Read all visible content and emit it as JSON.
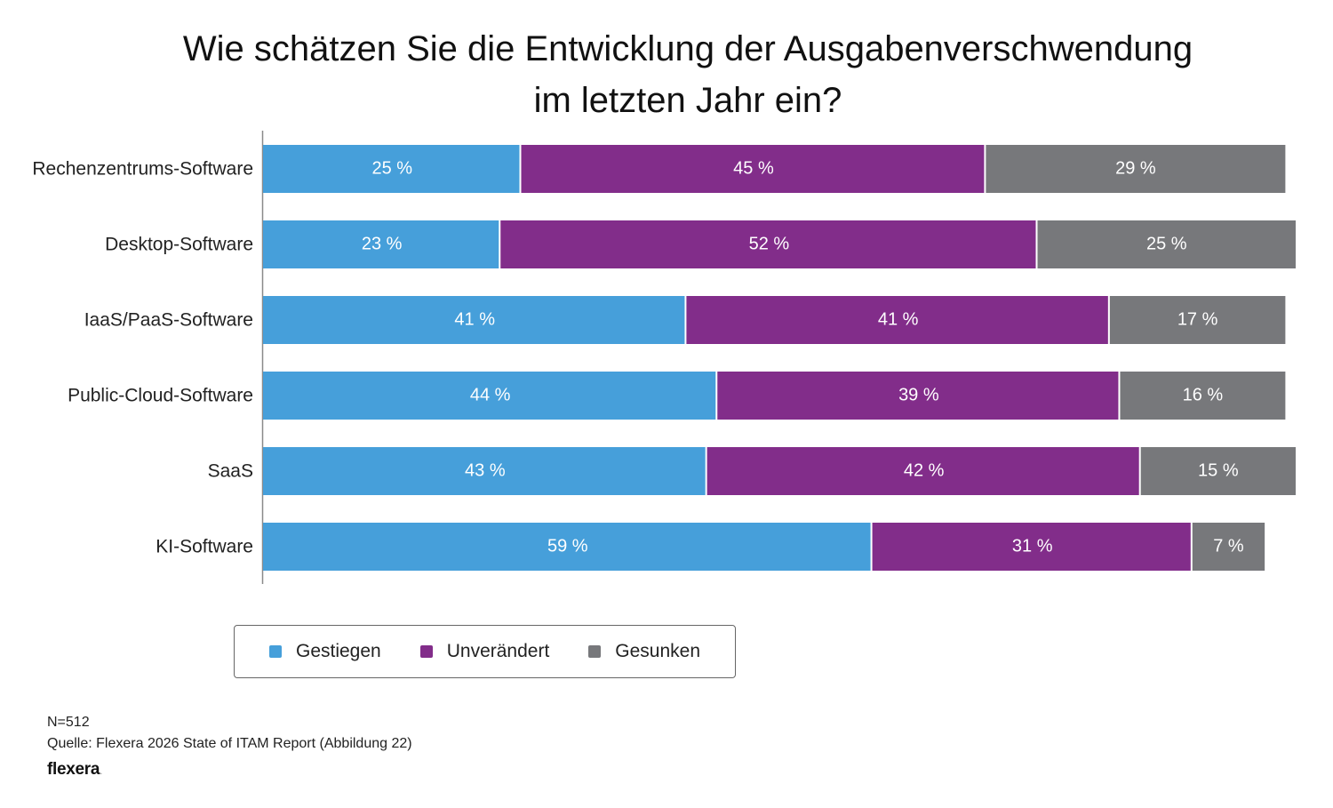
{
  "title_line1": "Wie schätzen Sie die Entwicklung der Ausgabenverschwendung",
  "title_line2": "im letzten Jahr ein?",
  "chart_data": {
    "type": "bar",
    "orientation": "horizontal",
    "stacked": true,
    "title": "Wie schätzen Sie die Entwicklung der Ausgabenverschwendung im letzten Jahr ein?",
    "categories": [
      "Rechenzentrums-Software",
      "Desktop-Software",
      "IaaS/PaaS-Software",
      "Public-Cloud-Software",
      "SaaS",
      "KI-Software"
    ],
    "series": [
      {
        "name": "Gestiegen",
        "values": [
          25,
          23,
          41,
          44,
          43,
          59
        ],
        "color": "#469fda"
      },
      {
        "name": "Unverändert",
        "values": [
          45,
          52,
          41,
          39,
          42,
          31
        ],
        "color": "#822d8a"
      },
      {
        "name": "Gesunken",
        "values": [
          29,
          25,
          17,
          16,
          15,
          7
        ],
        "color": "#77787b"
      }
    ],
    "value_suffix": " %",
    "legend_position": "bottom",
    "grid": false
  },
  "legend": [
    {
      "label": "Gestiegen",
      "color": "#469fda"
    },
    {
      "label": "Unverändert",
      "color": "#822d8a"
    },
    {
      "label": "Gesunken",
      "color": "#77787b"
    }
  ],
  "footnote_n": "N=512",
  "footnote_source": "Quelle: Flexera 2026 State of ITAM Report (Abbildung 22)",
  "brand_name": "flexera",
  "brand_dot": "."
}
